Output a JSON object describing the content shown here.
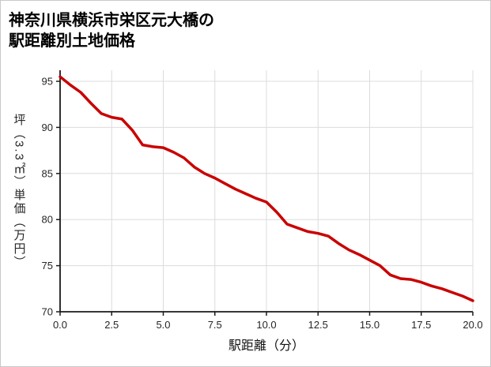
{
  "page": {
    "title_line1": "神奈川県横浜市栄区元大橋の",
    "title_line2": "駅距離別土地価格"
  },
  "chart_data": {
    "type": "line",
    "title": "神奈川県横浜市栄区元大橋の駅距離別土地価格",
    "xlabel": "駅距離（分）",
    "ylabel": "坪（3.3㎡）単価（万円）",
    "x": [
      0,
      0.5,
      1,
      1.5,
      2,
      2.5,
      3,
      3.5,
      4,
      4.5,
      5,
      5.5,
      6,
      6.5,
      7,
      7.5,
      8,
      8.5,
      9,
      9.5,
      10,
      10.5,
      11,
      11.5,
      12,
      12.5,
      13,
      13.5,
      14,
      14.5,
      15,
      15.5,
      16,
      16.5,
      17,
      17.5,
      18,
      18.5,
      19,
      19.5,
      20
    ],
    "y": [
      95.5,
      94.6,
      93.8,
      92.6,
      91.5,
      91.1,
      90.9,
      89.7,
      88.1,
      87.9,
      87.8,
      87.3,
      86.7,
      85.7,
      85.0,
      84.5,
      83.9,
      83.3,
      82.8,
      82.3,
      81.9,
      80.8,
      79.5,
      79.1,
      78.7,
      78.5,
      78.2,
      77.4,
      76.7,
      76.2,
      75.6,
      75.0,
      74.0,
      73.6,
      73.5,
      73.2,
      72.8,
      72.5,
      72.1,
      71.7,
      71.2
    ],
    "xlim": [
      0,
      20
    ],
    "ylim": [
      70,
      96.2
    ],
    "x_ticks": [
      0,
      2.5,
      5,
      7.5,
      10,
      12.5,
      15,
      17.5,
      20
    ],
    "x_tick_labels": [
      "0.0",
      "2.5",
      "5.0",
      "7.5",
      "10.0",
      "12.5",
      "15.0",
      "17.5",
      "20.0"
    ],
    "y_ticks": [
      70,
      75,
      80,
      85,
      90,
      95
    ],
    "y_tick_labels": [
      "70",
      "75",
      "80",
      "85",
      "90",
      "95"
    ],
    "grid": true,
    "legend": "none",
    "line_color": "#c90000",
    "axis_color": "#1a1a1a",
    "grid_color": "#dcdcdc"
  }
}
